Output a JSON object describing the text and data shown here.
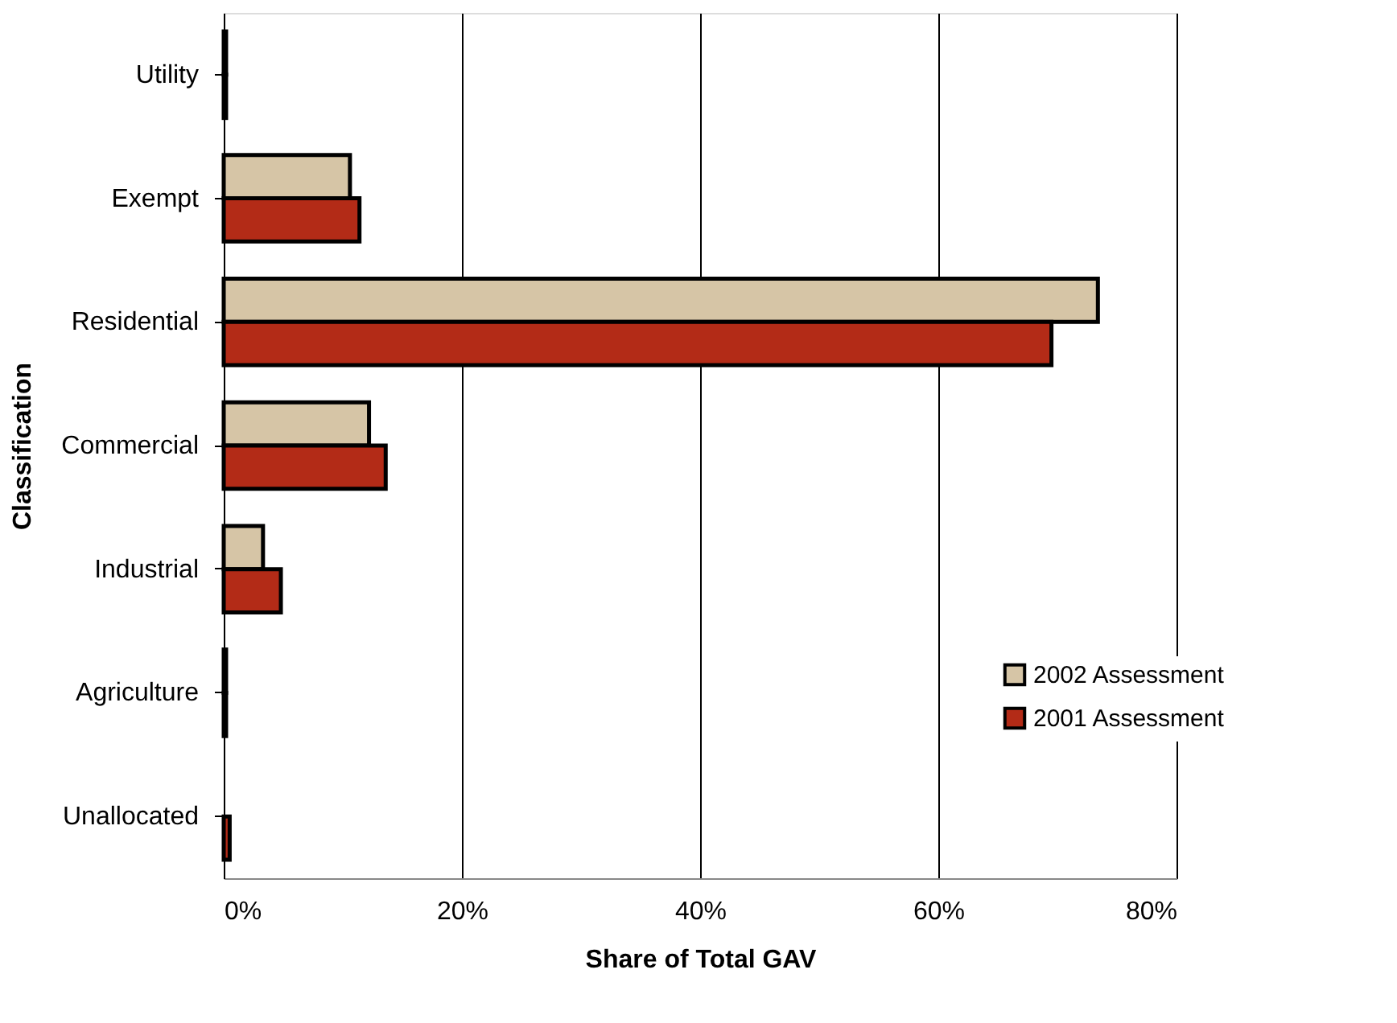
{
  "chart_data": {
    "type": "bar",
    "orientation": "horizontal",
    "xlabel": "Share of Total GAV",
    "ylabel": "Classification",
    "categories": [
      "Utility",
      "Exempt",
      "Residential",
      "Commercial",
      "Industrial",
      "Agriculture",
      "Unallocated"
    ],
    "series": [
      {
        "name": "2002 Assessment",
        "color": "#d6c5a6",
        "values": [
          0.2,
          10.6,
          73.4,
          12.2,
          3.3,
          0.2,
          null
        ]
      },
      {
        "name": "2001 Assessment",
        "color": "#b32b17",
        "values": [
          0.2,
          11.4,
          69.5,
          13.6,
          4.8,
          0.2,
          0.5
        ]
      }
    ],
    "xlim": [
      0,
      80
    ],
    "xticks": [
      {
        "value": 0,
        "label": "0%"
      },
      {
        "value": 20,
        "label": "20%"
      },
      {
        "value": 40,
        "label": "40%"
      },
      {
        "value": 60,
        "label": "60%"
      },
      {
        "value": 80,
        "label": "80%"
      }
    ],
    "grid": "x",
    "legend": "bottom right"
  }
}
